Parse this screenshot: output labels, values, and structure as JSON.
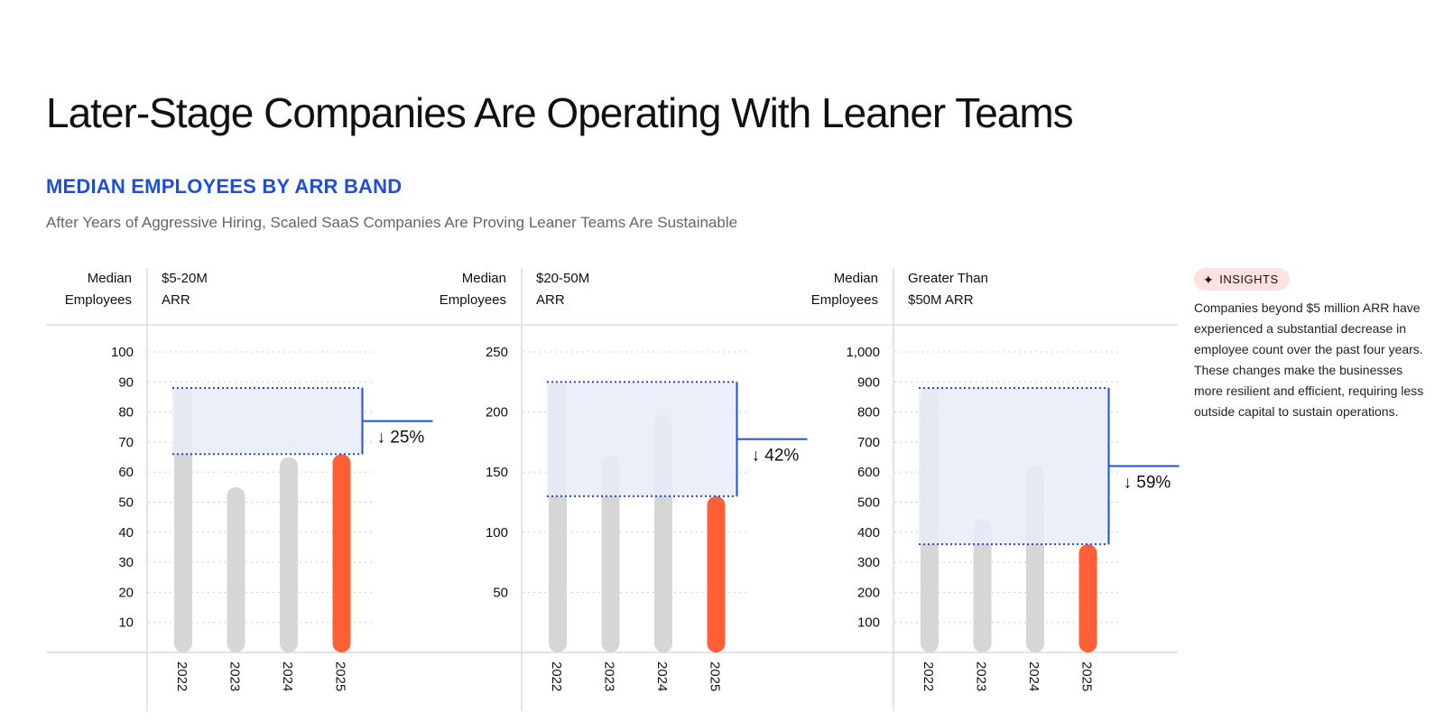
{
  "title": "Later-Stage Companies Are Operating With Leaner Teams",
  "subtitle": "MEDIAN EMPLOYEES BY ARR BAND",
  "description": "After Years of Aggressive Hiring, Scaled SaaS Companies Are Proving Leaner Teams Are Sustainable",
  "insights": {
    "badge_icon": "✦",
    "badge_label": "INSIGHTS",
    "text": "Companies beyond $5 million ARR have experienced a substantial decrease in employee count over the past four years. These changes make the businesses more resilient and efficient, requiring less outside capital to sustain operations."
  },
  "colors": {
    "accent": "#1f4fd8",
    "highlight": "#ff5f37",
    "bar": "#d6d6d6",
    "band": "#e6ecf9"
  },
  "chart_data": [
    {
      "type": "bar",
      "ylabel": [
        "Median",
        "Employees"
      ],
      "band_label": [
        "$5-20M",
        "ARR"
      ],
      "categories": [
        "2022",
        "2023",
        "2024",
        "2025"
      ],
      "values": [
        88,
        55,
        65,
        66
      ],
      "ylim": [
        0,
        100
      ],
      "yticks": [
        10,
        20,
        30,
        40,
        50,
        60,
        70,
        80,
        90,
        100
      ],
      "ytick_labels": [
        "10",
        "20",
        "30",
        "40",
        "50",
        "60",
        "70",
        "80",
        "90",
        "100"
      ],
      "highlight_index": 3,
      "change_label": "↓ 25%"
    },
    {
      "type": "bar",
      "ylabel": [
        "Median",
        "Employees"
      ],
      "band_label": [
        "$20-50M",
        "ARR"
      ],
      "categories": [
        "2022",
        "2023",
        "2024",
        "2025"
      ],
      "values": [
        225,
        164,
        198,
        130
      ],
      "ylim": [
        0,
        250
      ],
      "yticks": [
        50,
        100,
        150,
        200,
        250
      ],
      "ytick_labels": [
        "50",
        "100",
        "150",
        "200",
        "250"
      ],
      "highlight_index": 3,
      "change_label": "↓ 42%"
    },
    {
      "type": "bar",
      "ylabel": [
        "Median",
        "Employees"
      ],
      "band_label": [
        "Greater Than",
        "$50M ARR"
      ],
      "categories": [
        "2022",
        "2023",
        "2024",
        "2025"
      ],
      "values": [
        880,
        445,
        620,
        360
      ],
      "ylim": [
        0,
        1000
      ],
      "yticks": [
        100,
        200,
        300,
        400,
        500,
        600,
        700,
        800,
        900,
        1000
      ],
      "ytick_labels": [
        "100",
        "200",
        "300",
        "400",
        "500",
        "600",
        "700",
        "800",
        "900",
        "1,000"
      ],
      "highlight_index": 3,
      "change_label": "↓ 59%"
    }
  ]
}
